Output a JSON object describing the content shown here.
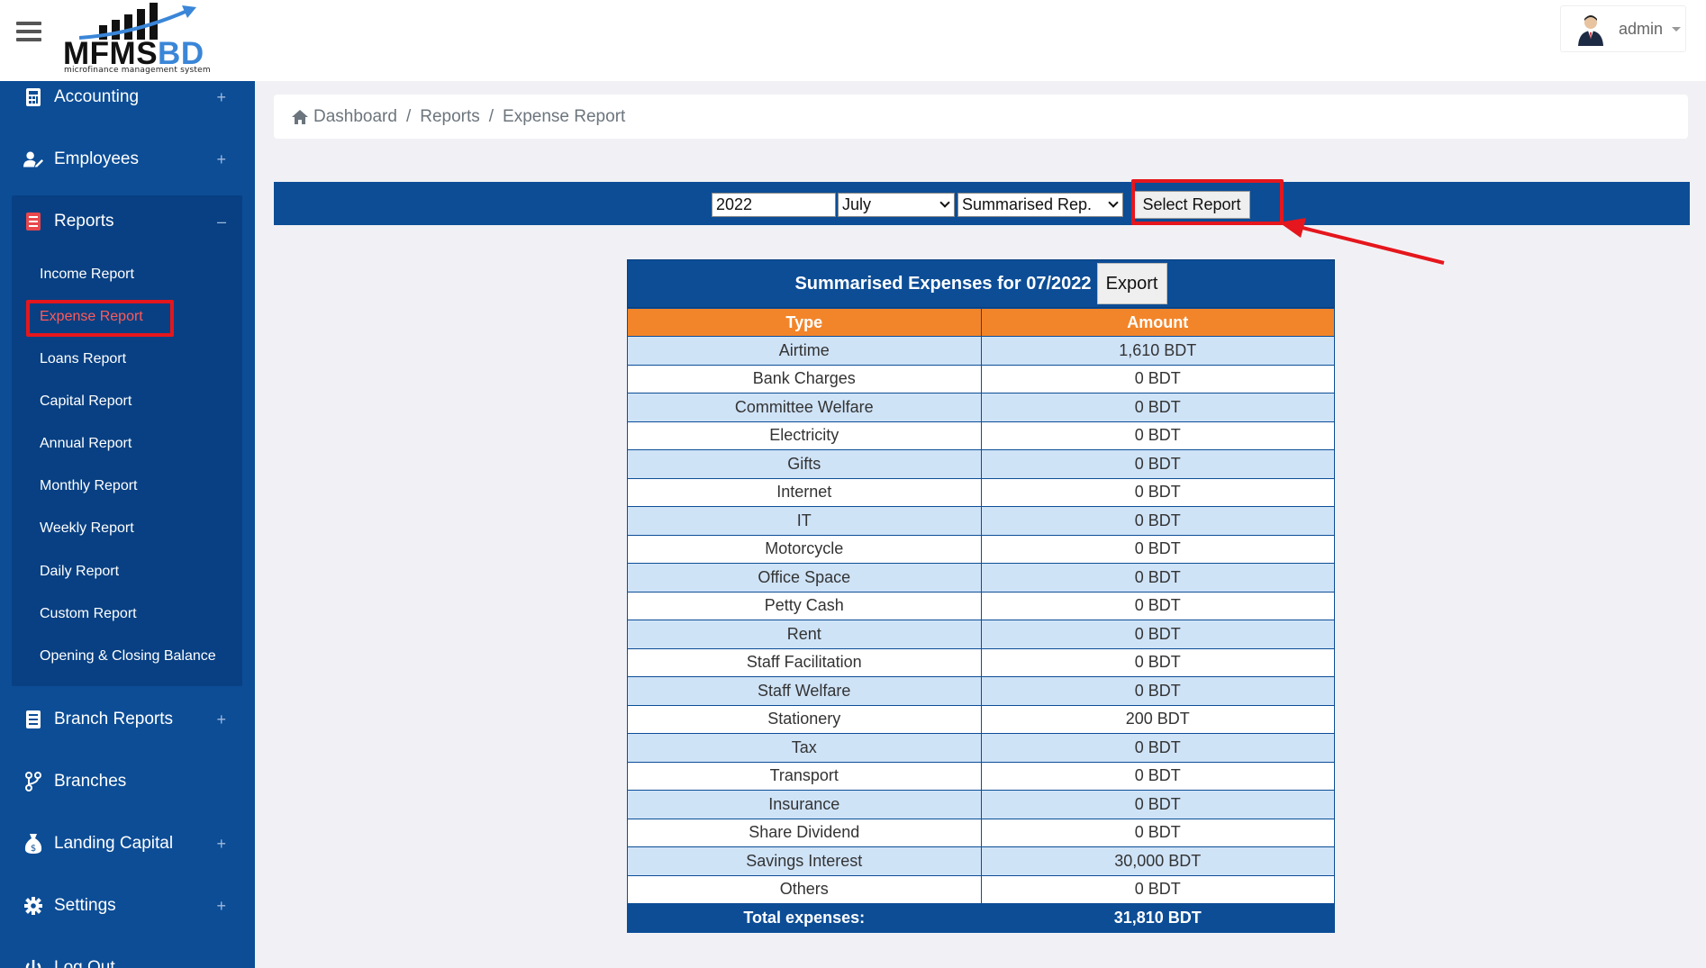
{
  "app": {
    "logo_main": "MFMS",
    "logo_accent": "BD",
    "logo_sub": "microfinance management system",
    "user_name": "admin"
  },
  "sidebar": {
    "accounting": "Accounting",
    "employees": "Employees",
    "reports": "Reports",
    "reports_sub": [
      "Income Report",
      "Expense Report",
      "Loans Report",
      "Capital Report",
      "Annual Report",
      "Monthly Report",
      "Weekly Report",
      "Daily Report",
      "Custom Report",
      "Opening & Closing Balance"
    ],
    "branch_reports": "Branch Reports",
    "branches": "Branches",
    "landing_capital": "Landing Capital",
    "settings": "Settings",
    "logout": "Log Out"
  },
  "breadcrumb": {
    "home": "Dashboard",
    "reports": "Reports",
    "current": "Expense Report"
  },
  "filters": {
    "year": "2022",
    "month": "July",
    "report_type": "Summarised Rep.",
    "select_button": "Select Report"
  },
  "report": {
    "title": "Summarised Expenses for 07/2022",
    "export_label": "Export",
    "col_type": "Type",
    "col_amount": "Amount",
    "rows": [
      {
        "type": "Airtime",
        "amount": "1,610 BDT"
      },
      {
        "type": "Bank Charges",
        "amount": "0 BDT"
      },
      {
        "type": "Committee Welfare",
        "amount": "0 BDT"
      },
      {
        "type": "Electricity",
        "amount": "0 BDT"
      },
      {
        "type": "Gifts",
        "amount": "0 BDT"
      },
      {
        "type": "Internet",
        "amount": "0 BDT"
      },
      {
        "type": "IT",
        "amount": "0 BDT"
      },
      {
        "type": "Motorcycle",
        "amount": "0 BDT"
      },
      {
        "type": "Office Space",
        "amount": "0 BDT"
      },
      {
        "type": "Petty Cash",
        "amount": "0 BDT"
      },
      {
        "type": "Rent",
        "amount": "0 BDT"
      },
      {
        "type": "Staff Facilitation",
        "amount": "0 BDT"
      },
      {
        "type": "Staff Welfare",
        "amount": "0 BDT"
      },
      {
        "type": "Stationery",
        "amount": "200 BDT"
      },
      {
        "type": "Tax",
        "amount": "0 BDT"
      },
      {
        "type": "Transport",
        "amount": "0 BDT"
      },
      {
        "type": "Insurance",
        "amount": "0 BDT"
      },
      {
        "type": "Share Dividend",
        "amount": "0 BDT"
      },
      {
        "type": "Savings Interest",
        "amount": "30,000 BDT"
      },
      {
        "type": "Others",
        "amount": "0 BDT"
      }
    ],
    "total_label": "Total expenses:",
    "total_value": "31,810 BDT"
  },
  "colors": {
    "primary": "#0c4d96",
    "accent_orange": "#f2852a",
    "highlight_red": "#e5161d",
    "row_alt": "#cfe3f7"
  }
}
